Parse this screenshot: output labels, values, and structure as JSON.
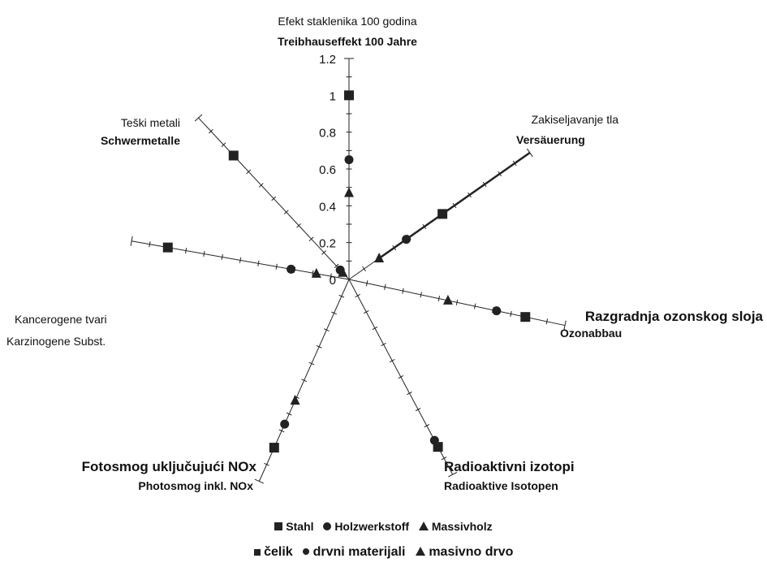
{
  "chart_data": {
    "type": "radar",
    "radial_ticks": [
      "0",
      "0.2",
      "0.4",
      "0.6",
      "0.8",
      "1",
      "1.2"
    ],
    "rmax": 1.2,
    "axes": [
      {
        "label_hr": "Efekt staklenika 100 godina",
        "label_de": "Treibhauseffekt 100 Jahre",
        "Stahl": 1.0,
        "Holzwerkstoff": 0.65,
        "Massivholz": 0.47
      },
      {
        "label_hr": "Zakiseljavanje tla",
        "label_de": "Versäuerung",
        "Stahl": 0.62,
        "Holzwerkstoff": 0.38,
        "Massivholz": 0.2
      },
      {
        "label_hr": "Razgradnja ozonskog sloja",
        "label_de": "Ozonabbau",
        "Stahl": 0.98,
        "Holzwerkstoff": 0.82,
        "Massivholz": 0.55
      },
      {
        "label_hr": "Radioaktivni izotopi",
        "label_de": "Radioaktive Isotopen",
        "Stahl": 1.03,
        "Holzwerkstoff": 0.99,
        "Massivholz": 1.03
      },
      {
        "label_hr": "Fotosmog uključujući NOx",
        "label_de": "Photosmog inkl. NOx",
        "Stahl": 1.0,
        "Holzwerkstoff": 0.86,
        "Massivholz": 0.72
      },
      {
        "label_hr": "Kancerogene tvari",
        "label_de": "Karzinogene Subst.",
        "Stahl": 1.0,
        "Holzwerkstoff": 0.32,
        "Massivholz": 0.18
      },
      {
        "label_hr": "Teški metali",
        "label_de": "Schwermetalle",
        "Stahl": 0.92,
        "Holzwerkstoff": 0.07,
        "Massivholz": 0.05
      }
    ],
    "series": [
      {
        "name": "Stahl",
        "name_hr": "čelik",
        "marker": "square"
      },
      {
        "name": "Holzwerkstoff",
        "name_hr": "drvni materijali",
        "marker": "circle"
      },
      {
        "name": "Massivholz",
        "name_hr": "masivno drvo",
        "marker": "triangle"
      }
    ],
    "color": "#222222",
    "grid": false
  }
}
